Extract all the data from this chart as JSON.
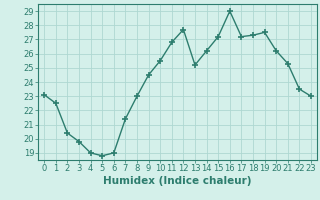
{
  "x": [
    0,
    1,
    2,
    3,
    4,
    5,
    6,
    7,
    8,
    9,
    10,
    11,
    12,
    13,
    14,
    15,
    16,
    17,
    18,
    19,
    20,
    21,
    22,
    23
  ],
  "y": [
    23.1,
    22.5,
    20.4,
    19.8,
    19.0,
    18.8,
    19.0,
    21.4,
    23.0,
    24.5,
    25.5,
    26.8,
    27.7,
    25.2,
    26.2,
    27.2,
    29.0,
    27.2,
    27.3,
    27.5,
    26.2,
    25.3,
    23.5,
    23.0
  ],
  "line_color": "#2d7d6e",
  "marker": "+",
  "marker_size": 4,
  "marker_linewidth": 1.2,
  "bg_color": "#d4f0ea",
  "grid_color": "#aed8d2",
  "xlabel": "Humidex (Indice chaleur)",
  "xlim": [
    -0.5,
    23.5
  ],
  "ylim": [
    18.5,
    29.5
  ],
  "yticks": [
    19,
    20,
    21,
    22,
    23,
    24,
    25,
    26,
    27,
    28,
    29
  ],
  "xticks": [
    0,
    1,
    2,
    3,
    4,
    5,
    6,
    7,
    8,
    9,
    10,
    11,
    12,
    13,
    14,
    15,
    16,
    17,
    18,
    19,
    20,
    21,
    22,
    23
  ],
  "tick_color": "#2d7d6e",
  "label_fontsize": 6,
  "xlabel_fontsize": 7.5,
  "xlabel_fontweight": "bold",
  "linewidth": 1.0
}
